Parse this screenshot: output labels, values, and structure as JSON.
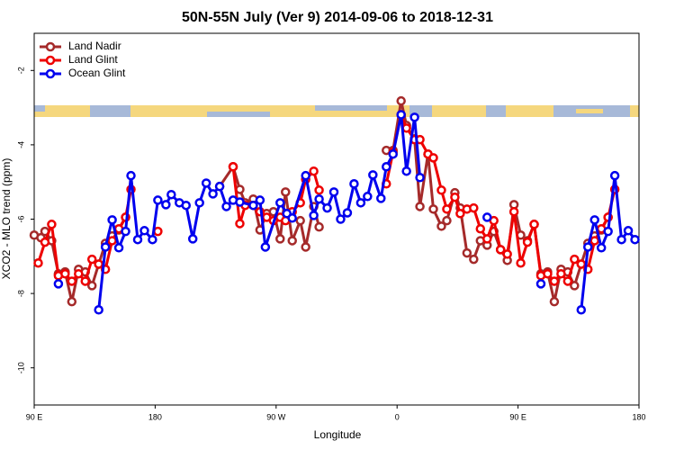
{
  "chart_data": {
    "type": "line",
    "title": "50N-55N July (Ver 9)   2014-09-06 to 2018-12-31",
    "xlabel": "Longitude",
    "ylabel": "XCO2 - MLO trend (ppm)",
    "xlim": [
      90,
      540
    ],
    "xticks": [
      {
        "value": 90,
        "label": "90 E"
      },
      {
        "value": 180,
        "label": "180"
      },
      {
        "value": 270,
        "label": "90 W"
      },
      {
        "value": 360,
        "label": "0"
      },
      {
        "value": 450,
        "label": "90 E"
      },
      {
        "value": 540,
        "label": "180"
      }
    ],
    "ylim": [
      -11,
      -1
    ],
    "yticks": [
      -10,
      -8,
      -6,
      -4,
      -2
    ],
    "legend": "upper left",
    "series": [
      {
        "name": "Land Nadir",
        "color": "#a52a2a",
        "x": [
          90,
          95,
          98,
          103,
          108,
          113,
          118,
          123,
          128,
          133,
          138,
          143,
          148,
          153,
          158,
          null,
          228,
          238,
          243,
          247,
          253,
          258,
          263,
          268,
          273,
          277,
          282,
          288,
          292,
          298,
          302,
          null,
          352,
          357,
          363,
          367,
          373,
          377,
          383,
          387,
          393,
          397,
          403,
          407,
          412,
          417,
          422,
          427,
          432,
          437,
          442,
          447,
          452,
          457,
          462,
          467,
          472,
          477,
          482,
          487,
          492,
          497,
          502,
          507,
          512,
          517
        ],
        "values": [
          -6.43,
          -6.5,
          -6.33,
          -6.58,
          -7.47,
          -7.42,
          -8.22,
          -7.35,
          -7.42,
          -7.79,
          -7.21,
          -6.65,
          -6.45,
          -6.29,
          -5.95,
          null,
          -5.12,
          -4.59,
          -5.2,
          -5.56,
          -5.46,
          -6.29,
          -5.85,
          -5.8,
          -6.53,
          -5.27,
          -6.58,
          -6.04,
          -6.75,
          -5.66,
          -6.21,
          null,
          -4.15,
          -4.15,
          -2.82,
          -3.48,
          -3.84,
          -5.66,
          -4.25,
          -5.73,
          -6.19,
          -6.04,
          -5.29,
          -5.7,
          -6.91,
          -7.08,
          -6.58,
          -6.7,
          -6.33,
          -6.82,
          -7.11,
          -5.61,
          -6.43,
          -6.58,
          -6.14,
          -7.47,
          -7.42,
          -8.22,
          -7.35,
          -7.42,
          -7.79,
          -7.21,
          -6.65,
          -6.45,
          -6.29,
          -5.95
        ]
      },
      {
        "name": "Land Glint",
        "color": "#ee0000",
        "x": [
          93,
          98,
          103,
          108,
          113,
          118,
          123,
          128,
          133,
          138,
          143,
          148,
          153,
          158,
          162,
          null,
          182,
          null,
          238,
          243,
          247,
          253,
          258,
          263,
          268,
          273,
          277,
          282,
          288,
          292,
          298,
          302,
          null,
          352,
          357,
          363,
          367,
          373,
          377,
          383,
          387,
          393,
          397,
          403,
          407,
          412,
          417,
          422,
          427,
          432,
          437,
          442,
          447,
          452,
          457,
          462,
          467,
          472,
          477,
          482,
          487,
          492,
          497,
          502,
          507,
          512,
          517,
          522
        ],
        "values": [
          -7.18,
          -6.62,
          -6.14,
          -7.52,
          -7.47,
          -7.67,
          -7.47,
          -7.67,
          -7.08,
          -7.21,
          -7.35,
          -6.58,
          -6.26,
          -5.95,
          -5.2,
          null,
          -6.33,
          null,
          -4.59,
          -6.12,
          -5.63,
          -5.63,
          -5.8,
          -5.95,
          -6.04,
          -5.95,
          -6.04,
          -5.8,
          -5.56,
          -4.93,
          -4.71,
          -5.22,
          null,
          -5.05,
          -4.2,
          -3.19,
          -3.55,
          -3.86,
          -3.86,
          -4.25,
          -4.35,
          -5.22,
          -5.73,
          -5.41,
          -5.85,
          -5.73,
          -5.7,
          -6.26,
          -6.53,
          -6.04,
          -6.82,
          -6.94,
          -5.8,
          -7.18,
          -6.62,
          -6.14,
          -7.52,
          -7.47,
          -7.67,
          -7.47,
          -7.67,
          -7.08,
          -7.21,
          -7.35,
          -6.58,
          -6.26,
          -5.95,
          -5.2
        ]
      },
      {
        "name": "Ocean Glint",
        "color": "#0000ee",
        "x": [
          108,
          null,
          138,
          143,
          148,
          153,
          158,
          162,
          167,
          172,
          178,
          182,
          188,
          192,
          198,
          203,
          208,
          213,
          218,
          223,
          228,
          233,
          238,
          243,
          253,
          258,
          262,
          273,
          278,
          282,
          292,
          298,
          302,
          308,
          313,
          318,
          323,
          328,
          333,
          338,
          342,
          348,
          352,
          357,
          363,
          367,
          373,
          377,
          null,
          427,
          null,
          467,
          null,
          497,
          502,
          507,
          512,
          517,
          522,
          527,
          532,
          537
        ],
        "values": [
          -7.74,
          null,
          -8.44,
          -6.75,
          -6.02,
          -6.77,
          -6.33,
          -4.83,
          -6.55,
          -6.31,
          -6.55,
          -5.49,
          -5.61,
          -5.34,
          -5.56,
          -5.63,
          -6.53,
          -5.56,
          -5.03,
          -5.32,
          -5.12,
          -5.66,
          -5.49,
          -5.54,
          -5.63,
          -5.49,
          -6.75,
          -5.56,
          -5.85,
          -5.97,
          -4.83,
          -5.9,
          -5.46,
          -5.7,
          -5.27,
          -6.0,
          -5.83,
          -5.05,
          -5.56,
          -5.39,
          -4.81,
          -5.44,
          -4.59,
          -4.25,
          -3.19,
          -4.71,
          -3.26,
          -4.88,
          null,
          -5.95,
          null,
          -7.74,
          null,
          -8.44,
          -6.75,
          -6.02,
          -6.77,
          -6.33,
          -4.83,
          -6.55,
          -6.31,
          -6.55
        ]
      }
    ]
  }
}
